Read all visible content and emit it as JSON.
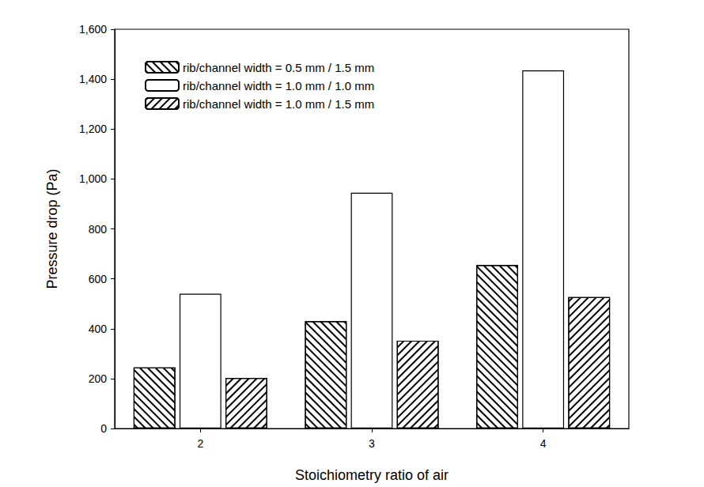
{
  "chart_data": {
    "type": "bar",
    "x_label": "Stoichiometry ratio of air",
    "y_label": "Pressure drop (Pa)",
    "categories": [
      "2",
      "3",
      "4"
    ],
    "series": [
      {
        "name": "rib/channel width = 0.5 mm / 1.5 mm",
        "color": "#ffffff",
        "values": [
          245,
          430,
          655
        ]
      },
      {
        "name": "rib/channel width = 1.0 mm / 1.0 mm",
        "color": "#ffffff",
        "values": [
          540,
          945,
          1435
        ]
      },
      {
        "name": "rib/channel width = 1.0 mm / 1.5 mm",
        "color": "#ffffff",
        "values": [
          203,
          352,
          527
        ]
      }
    ],
    "ylim": [
      0,
      1600
    ],
    "yticks": [
      0,
      200,
      400,
      600,
      800,
      1000,
      1200,
      1400,
      1600
    ],
    "grid": false,
    "legend": "upper left"
  }
}
